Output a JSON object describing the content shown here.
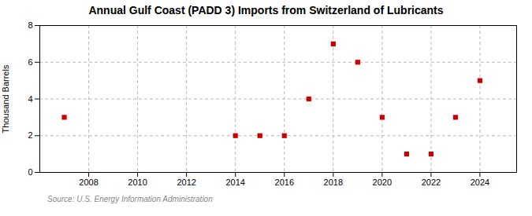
{
  "chart_data": {
    "type": "scatter",
    "title": "Annual Gulf Coast (PADD 3) Imports from Switzerland of Lubricants",
    "ylabel": "Thousand Barrels",
    "source": "Source: U.S. Energy Information Administration",
    "x": [
      2007,
      2014,
      2015,
      2016,
      2017,
      2018,
      2019,
      2020,
      2021,
      2022,
      2023,
      2024
    ],
    "values": [
      3,
      2,
      2,
      2,
      4,
      7,
      6,
      3,
      1,
      1,
      3,
      5
    ],
    "color": "#cc0000",
    "marker": "square",
    "xlim": [
      2006.0,
      2025.5
    ],
    "xticks": [
      2008,
      2010,
      2012,
      2014,
      2016,
      2018,
      2020,
      2022,
      2024
    ],
    "ylim": [
      0,
      8
    ],
    "yticks": [
      0,
      2,
      4,
      6,
      8
    ],
    "grid": true
  }
}
